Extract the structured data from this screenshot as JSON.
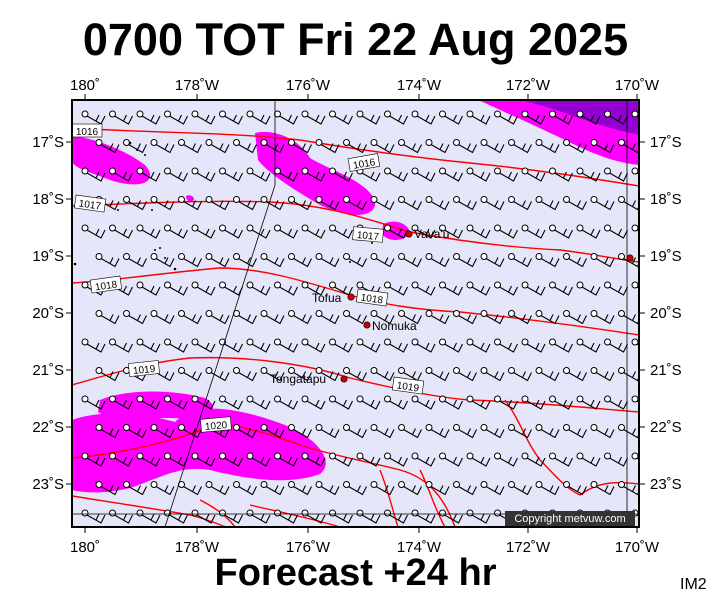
{
  "header": {
    "title": "0700 TOT Fri 22 Aug 2025",
    "subtitle": "Forecast +24 hr",
    "image_id": "IM2"
  },
  "map": {
    "lon_labels": [
      "180˚",
      "178˚W",
      "176˚W",
      "174˚W",
      "172˚W",
      "170˚W"
    ],
    "lat_labels": [
      "17˚S",
      "18˚S",
      "19˚S",
      "20˚S",
      "21˚S",
      "22˚S",
      "23˚S"
    ],
    "places": [
      {
        "name": "Vava'u"
      },
      {
        "name": "Tofua"
      },
      {
        "name": "Nomuka"
      },
      {
        "name": "Tongatapu"
      }
    ],
    "isobar_labels": [
      "1016",
      "1016",
      "1017",
      "1017",
      "1018",
      "1018",
      "1019",
      "1019",
      "1020"
    ],
    "copyright": "Copyright metvuw.com",
    "colors": {
      "sea_fill": "#e6e6fa",
      "rain_light": "#ff00ff",
      "rain_heavy": "#9400d3",
      "isobar": "#ff0000",
      "place_marker": "#cc0000"
    },
    "wind_symbol": "wind-barb"
  }
}
